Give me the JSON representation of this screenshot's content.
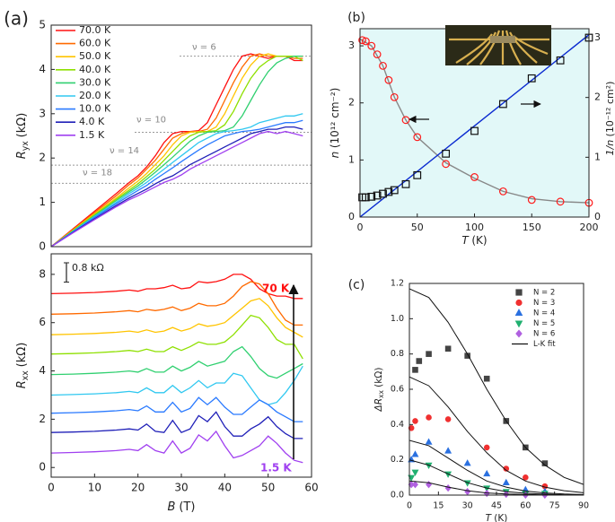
{
  "chart_data": [
    {
      "type": "line",
      "panel_label": "(a)",
      "ylabel": {
        "symbol": "R",
        "subscript": "yx",
        "unit": "(kΩ)"
      },
      "xlim": [
        0,
        60
      ],
      "ylim": [
        0,
        5
      ],
      "yticks": [
        0,
        1,
        2,
        3,
        4,
        5
      ],
      "legend": "upper left",
      "x": [
        0,
        5,
        10,
        15,
        18,
        20,
        22,
        24,
        26,
        28,
        30,
        32,
        34,
        36,
        38,
        40,
        42,
        44,
        46,
        48,
        50,
        52,
        54,
        56,
        58
      ],
      "series": [
        {
          "name": "70.0 K",
          "color": "#ff1010",
          "values": [
            0,
            0.4,
            0.8,
            1.2,
            1.45,
            1.6,
            1.8,
            2.05,
            2.35,
            2.55,
            2.6,
            2.6,
            2.62,
            2.8,
            3.2,
            3.6,
            4.0,
            4.3,
            4.35,
            4.3,
            4.25,
            4.3,
            4.3,
            4.2,
            4.2
          ]
        },
        {
          "name": "60.0 K",
          "color": "#ff6a00",
          "values": [
            0,
            0.38,
            0.77,
            1.15,
            1.4,
            1.55,
            1.75,
            1.95,
            2.2,
            2.45,
            2.55,
            2.6,
            2.6,
            2.65,
            2.9,
            3.3,
            3.7,
            4.05,
            4.3,
            4.35,
            4.3,
            4.3,
            4.3,
            4.25,
            4.25
          ]
        },
        {
          "name": "50.0 K",
          "color": "#ffc400",
          "values": [
            0,
            0.37,
            0.74,
            1.1,
            1.33,
            1.48,
            1.65,
            1.85,
            2.05,
            2.3,
            2.5,
            2.58,
            2.6,
            2.6,
            2.7,
            3.0,
            3.4,
            3.8,
            4.1,
            4.3,
            4.35,
            4.3,
            4.3,
            4.3,
            4.3
          ]
        },
        {
          "name": "40.0 K",
          "color": "#8ee000",
          "values": [
            0,
            0.36,
            0.72,
            1.07,
            1.28,
            1.42,
            1.58,
            1.75,
            1.95,
            2.15,
            2.35,
            2.5,
            2.58,
            2.6,
            2.62,
            2.75,
            3.05,
            3.45,
            3.8,
            4.05,
            4.2,
            4.3,
            4.3,
            4.3,
            4.2
          ]
        },
        {
          "name": "30.0 K",
          "color": "#30d070",
          "values": [
            0,
            0.35,
            0.7,
            1.04,
            1.24,
            1.37,
            1.52,
            1.68,
            1.85,
            2.02,
            2.2,
            2.38,
            2.5,
            2.58,
            2.6,
            2.62,
            2.7,
            2.95,
            3.3,
            3.65,
            3.95,
            4.15,
            4.25,
            4.3,
            4.3
          ]
        },
        {
          "name": "20.0 K",
          "color": "#30c8f0",
          "values": [
            0,
            0.34,
            0.68,
            1.0,
            1.2,
            1.32,
            1.45,
            1.6,
            1.75,
            1.9,
            2.05,
            2.2,
            2.35,
            2.45,
            2.55,
            2.6,
            2.62,
            2.65,
            2.7,
            2.8,
            2.85,
            2.9,
            2.95,
            2.95,
            3.0
          ]
        },
        {
          "name": "10.0 K",
          "color": "#2a7aff",
          "values": [
            0,
            0.33,
            0.66,
            0.97,
            1.15,
            1.27,
            1.38,
            1.52,
            1.65,
            1.78,
            1.92,
            2.05,
            2.18,
            2.3,
            2.4,
            2.5,
            2.55,
            2.6,
            2.62,
            2.65,
            2.7,
            2.75,
            2.8,
            2.8,
            2.85
          ]
        },
        {
          "name": "4.0 K",
          "color": "#2020b8",
          "values": [
            0,
            0.32,
            0.63,
            0.93,
            1.1,
            1.2,
            1.3,
            1.42,
            1.52,
            1.6,
            1.72,
            1.85,
            1.95,
            2.05,
            2.15,
            2.25,
            2.35,
            2.45,
            2.55,
            2.6,
            2.65,
            2.65,
            2.7,
            2.7,
            2.65
          ]
        },
        {
          "name": "1.5 K",
          "color": "#a040f0",
          "values": [
            0,
            0.31,
            0.61,
            0.9,
            1.06,
            1.15,
            1.25,
            1.35,
            1.45,
            1.52,
            1.62,
            1.75,
            1.85,
            1.95,
            2.05,
            2.15,
            2.25,
            2.35,
            2.45,
            2.55,
            2.6,
            2.55,
            2.6,
            2.55,
            2.5
          ]
        }
      ],
      "reference_lines": [
        {
          "label": "ν = 6",
          "value": 4.3
        },
        {
          "label": "ν = 10",
          "value": 2.58
        },
        {
          "label": "ν = 14",
          "value": 1.84
        },
        {
          "label": "ν = 18",
          "value": 1.43
        }
      ]
    },
    {
      "type": "line",
      "xlabel": {
        "symbol": "B",
        "unit": "(T)"
      },
      "ylabel": {
        "symbol": "R",
        "subscript": "xx",
        "unit": "(kΩ)"
      },
      "xlim": [
        0,
        60
      ],
      "xticks": [
        0,
        10,
        20,
        30,
        40,
        50,
        60
      ],
      "ylim": [
        -0.4,
        8.85
      ],
      "yticks": [
        0,
        2,
        4,
        6,
        8
      ],
      "x": [
        0,
        5,
        10,
        15,
        18,
        20,
        22,
        24,
        26,
        28,
        30,
        32,
        34,
        36,
        38,
        40,
        42,
        44,
        46,
        48,
        50,
        52,
        54,
        56,
        58
      ],
      "series": [
        {
          "color": "#ff1010",
          "values": [
            7.2,
            7.22,
            7.25,
            7.3,
            7.35,
            7.3,
            7.4,
            7.4,
            7.45,
            7.55,
            7.4,
            7.45,
            7.7,
            7.65,
            7.7,
            7.8,
            8.0,
            8.0,
            7.8,
            7.4,
            7.2,
            7.1,
            7.1,
            7.0,
            7.0
          ]
        },
        {
          "color": "#ff6a00",
          "values": [
            6.35,
            6.37,
            6.4,
            6.45,
            6.5,
            6.45,
            6.55,
            6.5,
            6.55,
            6.65,
            6.5,
            6.6,
            6.8,
            6.7,
            6.7,
            6.8,
            7.1,
            7.5,
            7.7,
            7.6,
            7.2,
            6.6,
            6.1,
            5.9,
            5.9
          ]
        },
        {
          "color": "#ffc400",
          "values": [
            5.5,
            5.52,
            5.55,
            5.6,
            5.65,
            5.6,
            5.7,
            5.6,
            5.65,
            5.8,
            5.65,
            5.75,
            5.95,
            5.85,
            5.9,
            6.0,
            6.3,
            6.6,
            6.9,
            7.0,
            6.7,
            6.2,
            5.8,
            5.6,
            5.4
          ]
        },
        {
          "color": "#8ee000",
          "values": [
            4.7,
            4.72,
            4.75,
            4.8,
            4.85,
            4.8,
            4.9,
            4.8,
            4.8,
            5.0,
            4.85,
            5.0,
            5.2,
            5.1,
            5.1,
            5.2,
            5.5,
            5.9,
            6.3,
            6.2,
            5.8,
            5.3,
            5.1,
            5.1,
            4.5
          ]
        },
        {
          "color": "#30d070",
          "values": [
            3.85,
            3.87,
            3.9,
            3.95,
            4.0,
            3.95,
            4.1,
            3.95,
            3.95,
            4.2,
            4.0,
            4.15,
            4.4,
            4.2,
            4.3,
            4.4,
            4.8,
            5.0,
            4.6,
            4.1,
            3.8,
            3.7,
            3.9,
            4.1,
            4.3
          ]
        },
        {
          "color": "#30c8f0",
          "values": [
            3.0,
            3.02,
            3.05,
            3.1,
            3.15,
            3.1,
            3.3,
            3.1,
            3.1,
            3.4,
            3.1,
            3.3,
            3.6,
            3.3,
            3.5,
            3.5,
            3.9,
            3.8,
            3.3,
            2.8,
            2.6,
            2.7,
            3.1,
            3.6,
            4.2
          ]
        },
        {
          "color": "#2a7aff",
          "values": [
            2.25,
            2.27,
            2.3,
            2.35,
            2.4,
            2.35,
            2.55,
            2.3,
            2.3,
            2.7,
            2.3,
            2.45,
            2.9,
            2.6,
            2.9,
            2.5,
            2.2,
            2.2,
            2.5,
            2.8,
            2.6,
            2.3,
            2.1,
            1.9,
            1.9
          ]
        },
        {
          "color": "#2020b8",
          "values": [
            1.45,
            1.47,
            1.5,
            1.55,
            1.6,
            1.55,
            1.8,
            1.5,
            1.45,
            1.95,
            1.45,
            1.6,
            2.15,
            1.9,
            2.3,
            1.7,
            1.3,
            1.3,
            1.6,
            1.8,
            2.1,
            1.7,
            1.4,
            1.2,
            1.2
          ]
        },
        {
          "color": "#a040f0",
          "values": [
            0.6,
            0.62,
            0.65,
            0.7,
            0.75,
            0.7,
            0.95,
            0.7,
            0.6,
            1.1,
            0.6,
            0.8,
            1.35,
            1.1,
            1.5,
            0.9,
            0.4,
            0.5,
            0.7,
            0.9,
            1.3,
            1.0,
            0.6,
            0.3,
            0.2
          ]
        }
      ],
      "scale_bar": {
        "label": "0.8 kΩ",
        "value": 0.8
      },
      "annotations": [
        {
          "text": "70 K",
          "color": "#ff1010"
        },
        {
          "text": "1.5 K",
          "color": "#a040f0"
        }
      ]
    },
    {
      "type": "scatter",
      "panel_label": "(b)",
      "xlabel": {
        "symbol": "T",
        "unit": "(K)"
      },
      "ylabel": {
        "symbol": "n",
        "unit": "(10¹² cm⁻²)"
      },
      "y2label": {
        "symbol": "1/n",
        "unit": "(10⁻¹² cm²)"
      },
      "xlim": [
        0,
        200
      ],
      "xticks": [
        0,
        50,
        100,
        150,
        200
      ],
      "ylim": [
        0,
        3.3
      ],
      "yticks": [
        0,
        1,
        2,
        3
      ],
      "y2lim": [
        0,
        3.15
      ],
      "y2ticks": [
        0,
        1,
        2,
        3
      ],
      "background": "#e2f8f8",
      "series": [
        {
          "kind": "line",
          "color": "#888888",
          "x": [
            0,
            10,
            20,
            30,
            40,
            50,
            75,
            100,
            125,
            150,
            175,
            200
          ],
          "values": [
            3.12,
            3.0,
            2.65,
            2.1,
            1.7,
            1.4,
            0.95,
            0.68,
            0.45,
            0.32,
            0.27,
            0.25
          ]
        },
        {
          "kind": "line",
          "color": "#0a2ad0",
          "axis": "y2",
          "x": [
            0,
            200
          ],
          "values": [
            0,
            3.05
          ]
        },
        {
          "marker": "circle",
          "color": "#ff1a1a",
          "fill": "none",
          "x": [
            2,
            5,
            10,
            15,
            20,
            25,
            30,
            40,
            50,
            75,
            100,
            125,
            150,
            175,
            200
          ],
          "values": [
            3.1,
            3.08,
            3.0,
            2.85,
            2.65,
            2.4,
            2.1,
            1.7,
            1.4,
            0.93,
            0.7,
            0.45,
            0.3,
            0.27,
            0.25
          ]
        },
        {
          "marker": "square",
          "color": "#111111",
          "fill": "none",
          "axis": "y2",
          "x": [
            2,
            5,
            10,
            15,
            20,
            25,
            30,
            40,
            50,
            75,
            100,
            125,
            150,
            175,
            200
          ],
          "values": [
            0.33,
            0.33,
            0.34,
            0.36,
            0.39,
            0.42,
            0.45,
            0.55,
            0.7,
            1.06,
            1.44,
            1.89,
            2.32,
            2.62,
            3.0
          ]
        }
      ]
    },
    {
      "type": "scatter",
      "panel_label": "(c)",
      "xlabel": {
        "symbol": "T",
        "unit": "(K)"
      },
      "ylabel": {
        "symbol": "ΔR",
        "subscript": "xx",
        "unit": "(kΩ)"
      },
      "xlim": [
        0,
        90
      ],
      "xticks": [
        0,
        15,
        30,
        45,
        60,
        75,
        90
      ],
      "ylim": [
        0,
        1.2
      ],
      "yticks": [
        {
          "value": 0,
          "label": "0.0"
        },
        0.2,
        0.4,
        0.6,
        0.8,
        {
          "value": 1,
          "label": "1.0"
        },
        1.2
      ],
      "legend": "upper right",
      "series": [
        {
          "name": "N = 2",
          "marker": "square",
          "color": "#444444",
          "x": [
            3,
            5,
            10,
            20,
            30,
            40,
            50,
            60,
            70
          ],
          "values": [
            0.71,
            0.76,
            0.8,
            0.83,
            0.79,
            0.66,
            0.42,
            0.27,
            0.18
          ]
        },
        {
          "name": "N = 3",
          "marker": "circle",
          "color": "#f03030",
          "x": [
            1,
            3,
            10,
            20,
            40,
            50,
            60,
            70
          ],
          "values": [
            0.38,
            0.42,
            0.44,
            0.43,
            0.27,
            0.15,
            0.1,
            0.05
          ]
        },
        {
          "name": "N = 4",
          "marker": "triangle",
          "color": "#2a70e0",
          "x": [
            1,
            3,
            10,
            20,
            30,
            40,
            50,
            60,
            70
          ],
          "values": [
            0.2,
            0.23,
            0.3,
            0.25,
            0.18,
            0.12,
            0.07,
            0.03,
            0.02
          ]
        },
        {
          "name": "N = 5",
          "marker": "triangle-down",
          "color": "#20b070",
          "x": [
            1,
            3,
            10,
            20,
            30,
            40,
            50,
            60,
            70
          ],
          "values": [
            0.1,
            0.13,
            0.17,
            0.12,
            0.07,
            0.04,
            0.02,
            0.01,
            0.01
          ]
        },
        {
          "name": "N = 6",
          "marker": "diamond",
          "color": "#b060e0",
          "x": [
            1,
            3,
            10,
            20,
            30,
            40,
            50,
            60,
            70
          ],
          "values": [
            0.06,
            0.06,
            0.06,
            0.04,
            0.02,
            0.01,
            0.005,
            0,
            0
          ]
        }
      ],
      "fit": {
        "name": "L-K fit",
        "color": "#111111",
        "x": [
          0,
          10,
          20,
          30,
          40,
          50,
          60,
          70,
          80,
          90
        ],
        "curves": [
          [
            1.17,
            1.12,
            0.98,
            0.8,
            0.6,
            0.42,
            0.27,
            0.17,
            0.1,
            0.06
          ],
          [
            0.67,
            0.62,
            0.5,
            0.36,
            0.24,
            0.14,
            0.08,
            0.045,
            0.025,
            0.013
          ],
          [
            0.31,
            0.28,
            0.21,
            0.14,
            0.08,
            0.045,
            0.023,
            0.012,
            0.006,
            0.003
          ],
          [
            0.2,
            0.17,
            0.12,
            0.07,
            0.04,
            0.02,
            0.01,
            0.005,
            0.002,
            0.001
          ],
          [
            0.08,
            0.07,
            0.045,
            0.025,
            0.012,
            0.006,
            0.003,
            0.001,
            0.0005,
            0.0002
          ]
        ]
      }
    }
  ]
}
